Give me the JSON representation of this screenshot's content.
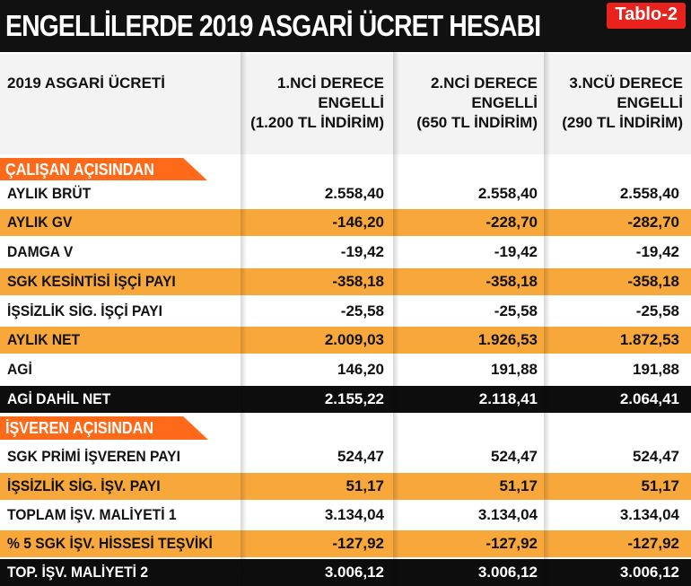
{
  "title": "ENGELLİLERDE 2019 ASGARİ ÜCRET HESABI",
  "tag": "Tablo-2",
  "header": {
    "col0": "2019 ASGARİ ÜCRETİ",
    "col1": "1.NCİ DERECE\nENGELLİ\n(1.200 TL İNDİRİM)",
    "col2": "2.NCİ DERECE\nENGELLİ\n(650 TL İNDİRİM)",
    "col3": "3.NCÜ DERECE\nENGELLİ\n(290 TL İNDİRİM)"
  },
  "sections": {
    "employee": "ÇALIŞAN AÇISINDAN",
    "employer": "İŞVEREN AÇISINDAN"
  },
  "rows": [
    {
      "label": "AYLIK BRÜT",
      "v1": "2.558,40",
      "v2": "2.558,40",
      "v3": "2.558,40"
    },
    {
      "label": "AYLIK GV",
      "v1": "-146,20",
      "v2": "-228,70",
      "v3": "-282,70"
    },
    {
      "label": "DAMGA V",
      "v1": "-19,42",
      "v2": "-19,42",
      "v3": "-19,42"
    },
    {
      "label": "SGK KESİNTİSİ İŞÇİ PAYI",
      "v1": "-358,18",
      "v2": "-358,18",
      "v3": "-358,18"
    },
    {
      "label": "İŞSİZLİK SİG. İŞÇİ PAYI",
      "v1": "-25,58",
      "v2": "-25,58",
      "v3": "-25,58"
    },
    {
      "label": "AYLIK NET",
      "v1": "2.009,03",
      "v2": "1.926,53",
      "v3": "1.872,53"
    },
    {
      "label": "AGİ",
      "v1": "146,20",
      "v2": "191,88",
      "v3": "191,88"
    },
    {
      "label": "AGİ DAHİL NET",
      "v1": "2.155,22",
      "v2": "2.118,41",
      "v3": "2.064,41"
    },
    {
      "label": "SGK PRİMİ İŞVEREN PAYI",
      "v1": "524,47",
      "v2": "524,47",
      "v3": "524,47"
    },
    {
      "label": "İŞSİZLİK SİG. İŞV. PAYI",
      "v1": "51,17",
      "v2": "51,17",
      "v3": "51,17"
    },
    {
      "label": "TOPLAM İŞV. MALİYETİ 1",
      "v1": "3.134,04",
      "v2": "3.134,04",
      "v3": "3.134,04"
    },
    {
      "label": "% 5 SGK İŞV. HİSSESİ TEŞVİKİ",
      "v1": "-127,92",
      "v2": "-127,92",
      "v3": "-127,92"
    },
    {
      "label": "TOP. İŞV. MALİYETİ 2",
      "v1": "3.006,12",
      "v2": "3.006,12",
      "v3": "3.006,12"
    }
  ],
  "colors": {
    "orange_row": "#f8a83a",
    "section_label": "#ff6a1a",
    "tag": "#e8231e",
    "title_bg": "#111111"
  }
}
